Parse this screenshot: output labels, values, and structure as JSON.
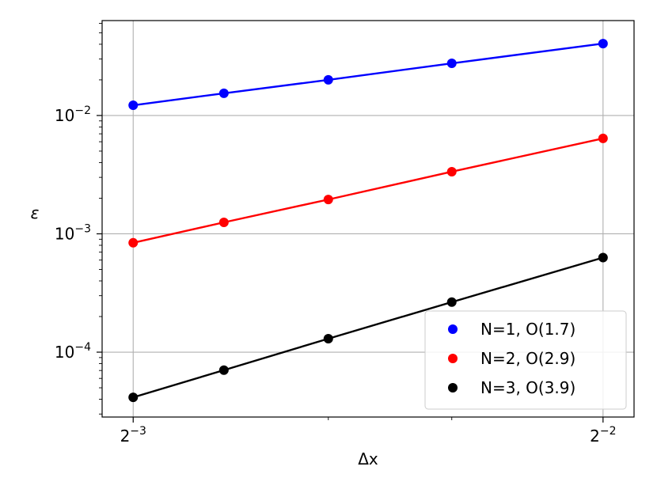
{
  "chart_data": {
    "type": "line",
    "xlabel": "Δx",
    "ylabel": "ε",
    "x_scale": "log2",
    "y_scale": "log10",
    "xlim": [
      0.1194,
      0.2617
    ],
    "ylim": [
      2.83e-05,
      0.0634
    ],
    "grid": true,
    "legend_position": "lower-right",
    "x_ticks": [
      {
        "value": 0.125,
        "base": "2",
        "exponent": "−3"
      },
      {
        "value": 0.25,
        "base": "2",
        "exponent": "−2"
      }
    ],
    "y_ticks": [
      {
        "value": 0.01,
        "base": "10",
        "exponent": "−2"
      },
      {
        "value": 0.001,
        "base": "10",
        "exponent": "−3"
      },
      {
        "value": 0.0001,
        "base": "10",
        "exponent": "−4"
      }
    ],
    "x": [
      0.125,
      0.1429,
      0.1667,
      0.2,
      0.25
    ],
    "series": [
      {
        "name": "N=1, O(1.7)",
        "color": "#0000ff",
        "values": [
          0.0122,
          0.0154,
          0.02,
          0.0276,
          0.0405
        ]
      },
      {
        "name": "N=2, O(2.9)",
        "color": "#ff0000",
        "values": [
          0.00084,
          0.00125,
          0.00195,
          0.00335,
          0.0064
        ]
      },
      {
        "name": "N=3, O(3.9)",
        "color": "#000000",
        "values": [
          4.15e-05,
          7.05e-05,
          0.00013,
          0.000265,
          0.00063
        ]
      }
    ]
  }
}
